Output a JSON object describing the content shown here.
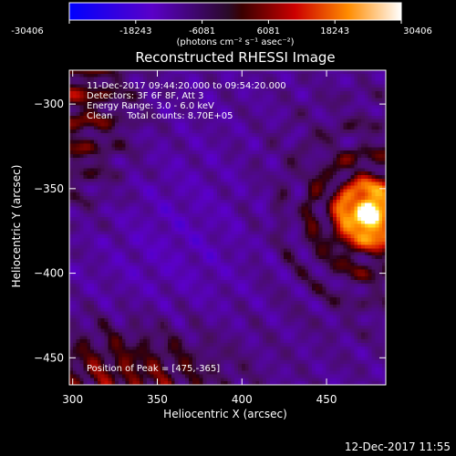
{
  "chart_data": {
    "type": "heatmap",
    "title": "Reconstructed RHESSI Image",
    "xlabel": "Heliocentric X (arcsec)",
    "ylabel": "Heliocentric Y (arcsec)",
    "xlim": [
      298,
      485
    ],
    "ylim": [
      -466,
      -280
    ],
    "x_ticks": [
      300,
      350,
      400,
      450
    ],
    "y_ticks": [
      -300,
      -350,
      -400,
      -450
    ],
    "colorbar": {
      "min": -30406,
      "max": 30406,
      "ticks": [
        -30406,
        -18243,
        -6081,
        6081,
        18243,
        30406
      ],
      "unit": "(photons cm⁻² s⁻¹ asec⁻²)"
    },
    "annotations": {
      "time_range": "11-Dec-2017 09:44:20.000 to 09:54:20.000",
      "detectors": "Detectors: 3F 6F 8F, Att 3",
      "energy_range": "Energy Range: 3.0 - 6.0 keV",
      "algorithm_counts": "Clean     Total counts: 8.70E+05",
      "peak_position": "Position of Peak = [475,-365]"
    },
    "peak": {
      "x": 475,
      "y": -365
    },
    "footer_timestamp": "12-Dec-2017 11:55"
  }
}
